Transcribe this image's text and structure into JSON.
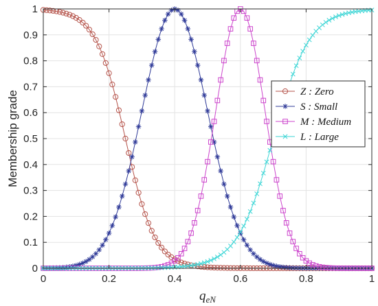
{
  "chart_data": {
    "type": "line",
    "xlabel": "q",
    "xlabel_sub": "eN",
    "ylabel": "Membership grade",
    "xlim": [
      0,
      1
    ],
    "ylim": [
      0,
      1
    ],
    "grid": true,
    "legend_placement": "right",
    "xticks": [
      "0",
      "0.2",
      "0.4",
      "0.6",
      "0.8",
      "1"
    ],
    "yticks": [
      "0",
      "0.1",
      "0.2",
      "0.3",
      "0.4",
      "0.5",
      "0.6",
      "0.7",
      "0.8",
      "0.9",
      "1"
    ],
    "series": [
      {
        "name": "Z : Zero",
        "kind": "z-shape",
        "center": 0.25,
        "width": 0.045,
        "color": "#b5534a",
        "marker": "circle"
      },
      {
        "name": "S : Small",
        "kind": "bell",
        "center": 0.4,
        "width": 0.1,
        "color": "#2f3a98",
        "marker": "star"
      },
      {
        "name": "M : Medium",
        "kind": "bell",
        "center": 0.6,
        "width": 0.075,
        "color": "#cc44cc",
        "marker": "square"
      },
      {
        "name": "L : Large",
        "kind": "s-shape",
        "center": 0.7,
        "width": 0.055,
        "color": "#3fd6d6",
        "marker": "x"
      }
    ],
    "sample_step": 0.01
  }
}
